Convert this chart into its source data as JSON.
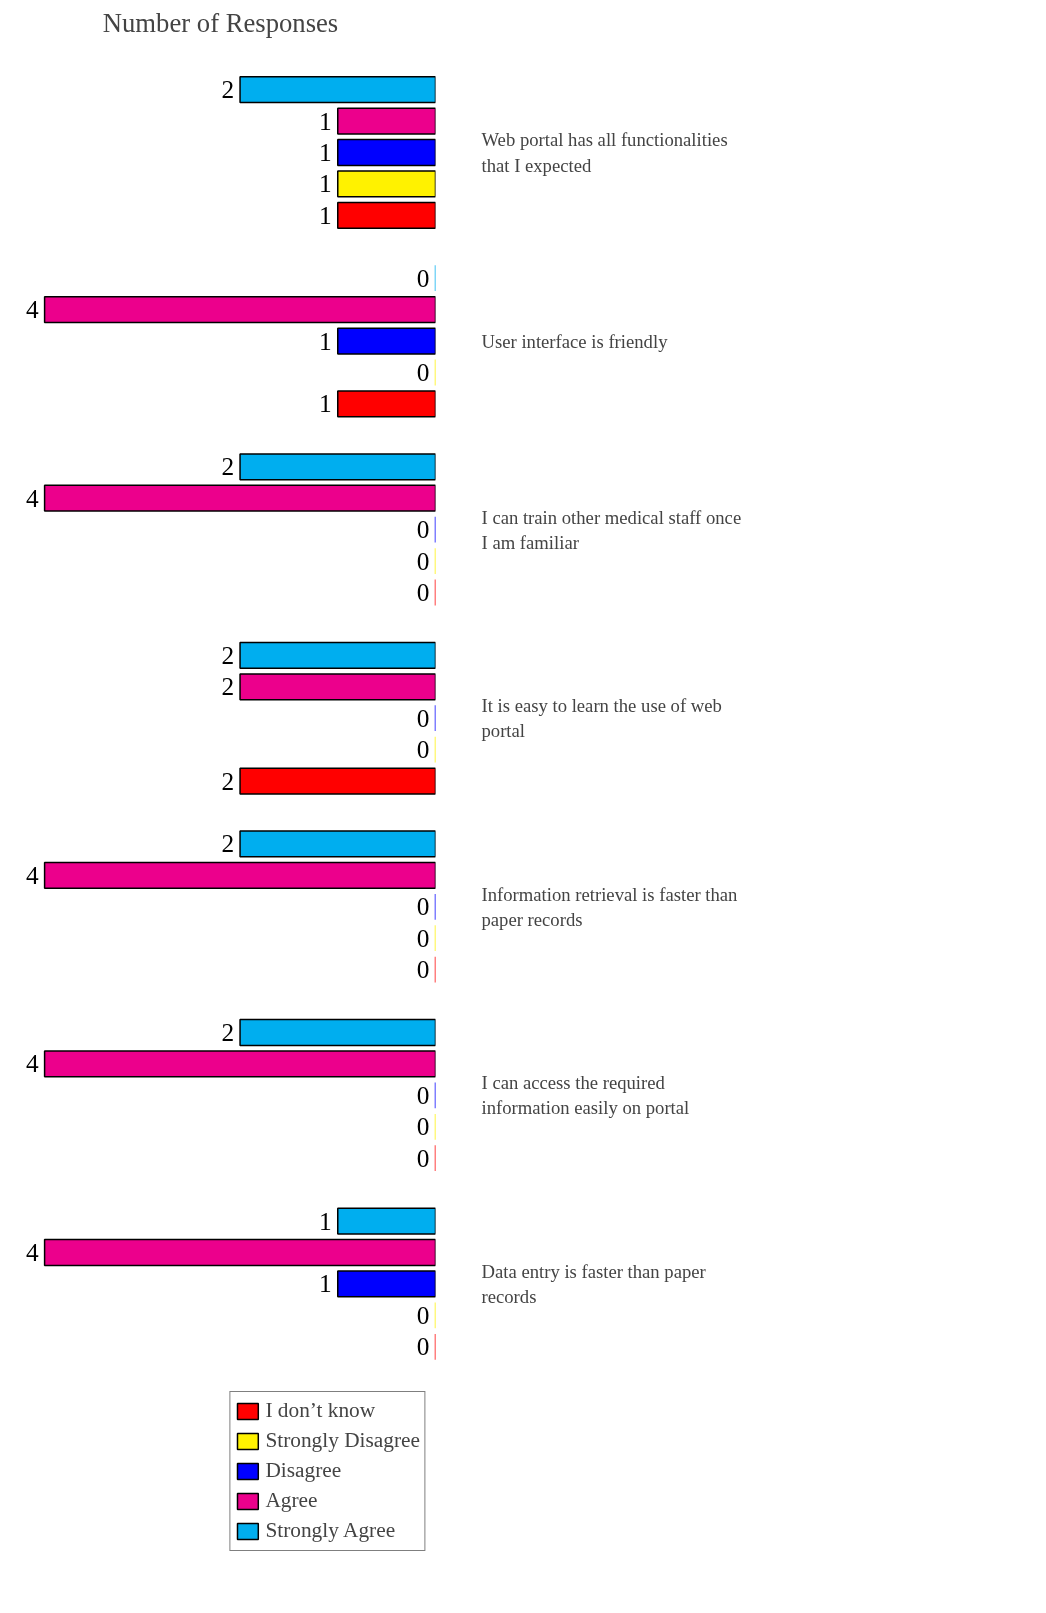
{
  "chart_data": {
    "type": "bar",
    "orientation": "horizontal",
    "title": "Number of Responses",
    "categories": [
      "Web portal has all functionalities that I expected",
      "User interface is friendly",
      "I can train other medical staff once I am familiar",
      "It is easy to learn the use of web portal",
      "Information retrieval is faster than paper records",
      "I can access the required information easily on portal",
      "Data entry is faster than paper records"
    ],
    "series": [
      {
        "name": "Strongly Agree",
        "color": "#00aeef",
        "values": [
          2,
          0,
          2,
          2,
          2,
          2,
          1
        ]
      },
      {
        "name": "Agree",
        "color": "#ec008c",
        "values": [
          1,
          4,
          4,
          2,
          4,
          4,
          4
        ]
      },
      {
        "name": "Disagree",
        "color": "#0000ff",
        "values": [
          1,
          1,
          0,
          0,
          0,
          0,
          1
        ]
      },
      {
        "name": "Strongly Disagree",
        "color": "#fff200",
        "values": [
          1,
          0,
          0,
          0,
          0,
          0,
          0
        ]
      },
      {
        "name": "I don’t know",
        "color": "#ff0000",
        "values": [
          1,
          1,
          0,
          2,
          0,
          0,
          0
        ]
      }
    ],
    "data_labels": true,
    "tick_labels": "y",
    "grid": false,
    "legend": "bottom right"
  }
}
